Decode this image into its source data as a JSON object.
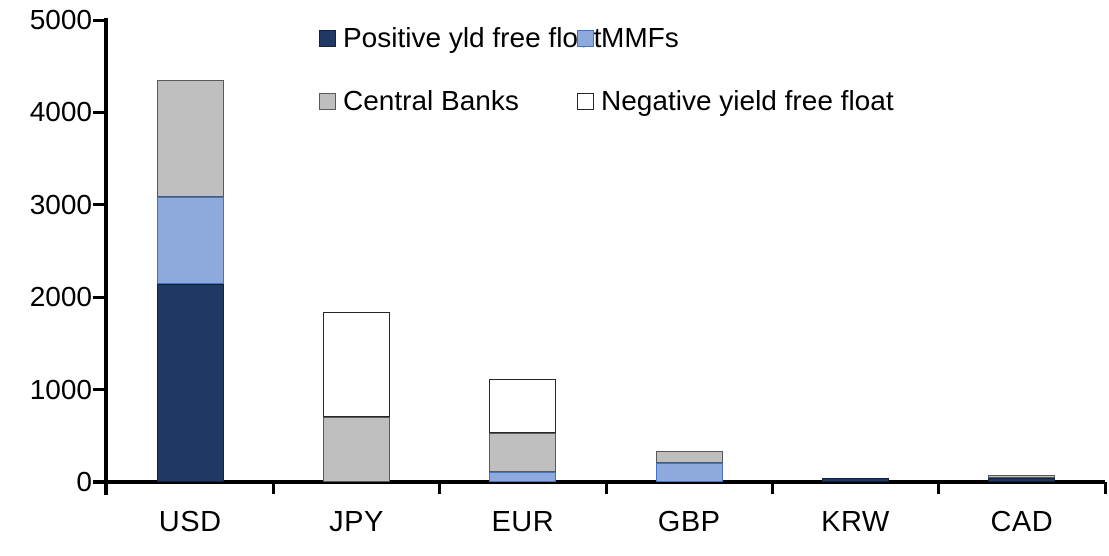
{
  "chart_data": {
    "type": "bar",
    "stacked": true,
    "title": "",
    "xlabel": "",
    "ylabel": "",
    "categories": [
      "USD",
      "JPY",
      "EUR",
      "GBP",
      "KRW",
      "CAD"
    ],
    "series": [
      {
        "name": "Positive yld free float",
        "color": "#1F3864",
        "border_color": "#152238",
        "values": [
          2140,
          0,
          0,
          0,
          45,
          40
        ]
      },
      {
        "name": "MMFs",
        "color": "#8EA9DB",
        "border_color": "#4472C4",
        "values": [
          940,
          0,
          110,
          210,
          0,
          0
        ]
      },
      {
        "name": "Central Banks",
        "color": "#BFBFBF",
        "border_color": "#595959",
        "values": [
          1275,
          700,
          425,
          125,
          0,
          35
        ]
      },
      {
        "name": "Negative yield free float",
        "color": "#FFFFFF",
        "border_color": "#262626",
        "values": [
          0,
          1140,
          575,
          0,
          0,
          0
        ]
      }
    ],
    "totals": [
      4355,
      1840,
      1110,
      335,
      45,
      75
    ],
    "ylim": [
      0,
      5000
    ],
    "yticks": [
      0,
      1000,
      2000,
      3000,
      4000,
      5000
    ],
    "grid": false,
    "legend_position": "top, two columns by two rows",
    "axis_color": "#000000",
    "background": "#FFFFFF"
  }
}
